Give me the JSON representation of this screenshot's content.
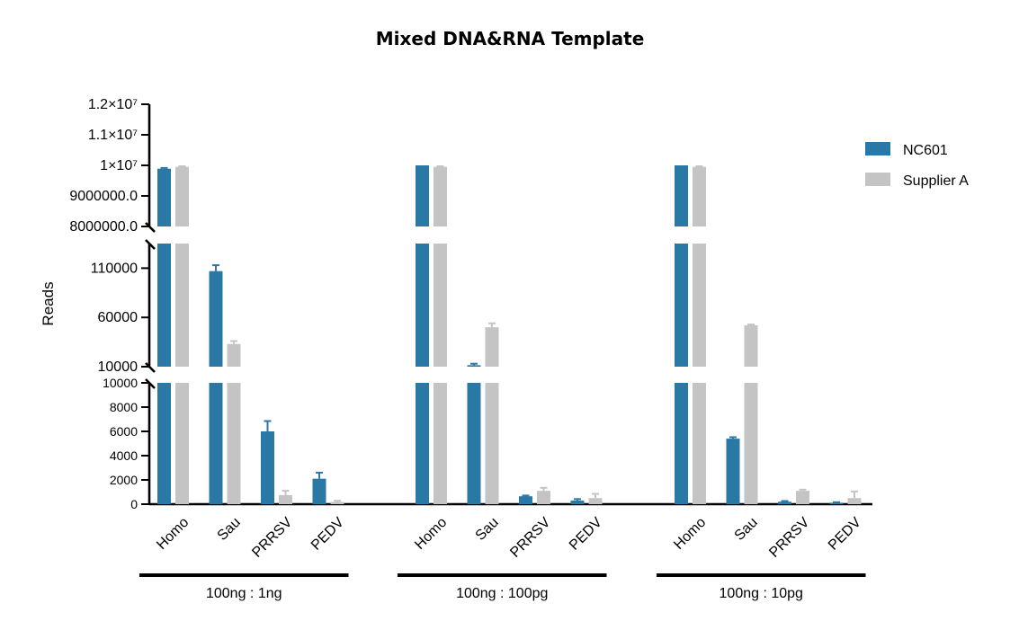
{
  "chart_data": {
    "type": "bar",
    "title": "Mixed DNA&RNA  Template",
    "ylabel": "Reads",
    "y_axis": {
      "broken": true,
      "segments": [
        {
          "range": [
            0,
            10000
          ],
          "ticks": [
            "0",
            "2000",
            "4000",
            "6000",
            "8000",
            "10000"
          ]
        },
        {
          "range": [
            10000,
            135000
          ],
          "ticks": [
            "10000",
            "60000",
            "110000"
          ]
        },
        {
          "range": [
            8000000,
            12000000
          ],
          "ticks": [
            "8000000.0",
            "9000000.0",
            "1×10⁷",
            "1.1×10⁷",
            "1.2×10⁷"
          ]
        }
      ]
    },
    "groups": [
      "100ng : 1ng",
      "100ng : 100pg",
      "100ng : 10pg"
    ],
    "categories": [
      "Homo",
      "Sau",
      "PRRSV",
      "PEDV"
    ],
    "legend_position": "right",
    "colors": {
      "NC601": "#2a78a6",
      "Supplier A": "#c4c4c4"
    },
    "series": [
      {
        "name": "NC601",
        "values": [
          [
            9890000,
            107000,
            6000,
            2100
          ],
          [
            10000000,
            11500,
            650,
            300
          ],
          [
            10000000,
            5400,
            200,
            120
          ]
        ],
        "errors": [
          [
            25000,
            6000,
            850,
            500
          ],
          [
            0,
            1500,
            60,
            120
          ],
          [
            0,
            120,
            60,
            40
          ]
        ]
      },
      {
        "name": "Supplier A",
        "values": [
          [
            9950000,
            33000,
            750,
            180
          ],
          [
            9950000,
            50000,
            1100,
            500
          ],
          [
            9950000,
            52000,
            1100,
            500
          ]
        ],
        "errors": [
          [
            20000,
            3000,
            350,
            100
          ],
          [
            20000,
            4000,
            250,
            350
          ],
          [
            20000,
            800,
            100,
            550
          ]
        ]
      }
    ]
  }
}
